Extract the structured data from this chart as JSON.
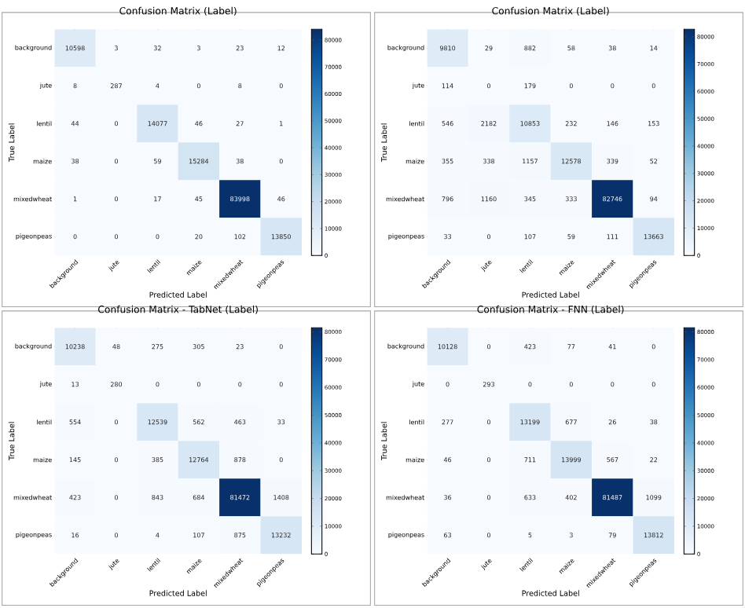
{
  "chart_data": [
    {
      "type": "heatmap",
      "title": "Confusion Matrix (Label)",
      "xlabel": "Predicted Label",
      "ylabel": "True Label",
      "categories": [
        "background",
        "jute",
        "lentil",
        "maize",
        "mixedwheat",
        "pigeonpeas"
      ],
      "y_categories": [
        "background",
        "jute",
        "lentil",
        "maize",
        "mixedwheat",
        "pigeonpeas"
      ],
      "cells": [
        [
          10598,
          3,
          32,
          3,
          23,
          12
        ],
        [
          8,
          287,
          4,
          0,
          8,
          0
        ],
        [
          44,
          0,
          14077,
          46,
          27,
          1
        ],
        [
          38,
          0,
          59,
          15284,
          38,
          0
        ],
        [
          1,
          0,
          17,
          45,
          83998,
          46
        ],
        [
          0,
          0,
          0,
          20,
          102,
          13850
        ]
      ],
      "clim": [
        0,
        83998
      ],
      "cticks": [
        0,
        10000,
        20000,
        30000,
        40000,
        50000,
        60000,
        70000,
        80000
      ],
      "data_labels": true
    },
    {
      "type": "heatmap",
      "title": "Confusion Matrix (Label)",
      "xlabel": "Predicted Label",
      "ylabel": "True Label",
      "categories": [
        "background",
        "jute",
        "lentil",
        "maize",
        "mixedwheat",
        "pigeonpeas"
      ],
      "y_categories": [
        "background",
        "jute",
        "lentil",
        "maize",
        "mixedwheat",
        "pigeonpeas"
      ],
      "cells": [
        [
          9810,
          29,
          882,
          58,
          38,
          14
        ],
        [
          114,
          0,
          179,
          0,
          0,
          0
        ],
        [
          546,
          2182,
          10853,
          232,
          146,
          153
        ],
        [
          355,
          338,
          1157,
          12578,
          339,
          52
        ],
        [
          796,
          1160,
          345,
          333,
          82746,
          94
        ],
        [
          33,
          0,
          107,
          59,
          111,
          13663
        ]
      ],
      "clim": [
        0,
        82746
      ],
      "cticks": [
        0,
        10000,
        20000,
        30000,
        40000,
        50000,
        60000,
        70000,
        80000
      ],
      "data_labels": true
    },
    {
      "type": "heatmap",
      "title": "Confusion Matrix - TabNet (Label)",
      "xlabel": "Predicted Label",
      "ylabel": "True Label",
      "categories": [
        "background",
        "jute",
        "lentil",
        "maize",
        "mixedwheat",
        "pigeonpeas"
      ],
      "y_categories": [
        "background",
        "jute",
        "lentil",
        "maize",
        "mixedwheat",
        "pigeonpeas"
      ],
      "cells": [
        [
          10238,
          48,
          275,
          305,
          23,
          0
        ],
        [
          13,
          280,
          0,
          0,
          0,
          0
        ],
        [
          554,
          0,
          12539,
          562,
          463,
          33
        ],
        [
          145,
          0,
          385,
          12764,
          878,
          0
        ],
        [
          423,
          0,
          843,
          684,
          81472,
          1408
        ],
        [
          16,
          0,
          4,
          107,
          875,
          13232
        ]
      ],
      "clim": [
        0,
        81472
      ],
      "cticks": [
        0,
        10000,
        20000,
        30000,
        40000,
        50000,
        60000,
        70000,
        80000
      ],
      "data_labels": true
    },
    {
      "type": "heatmap",
      "title": "Confusion Matrix - FNN (Label)",
      "xlabel": "Predicted Label",
      "ylabel": "True Label",
      "categories": [
        "background",
        "jute",
        "lentil",
        "maize",
        "mixedwheat",
        "pigeonpeas"
      ],
      "y_categories": [
        "background",
        "jute",
        "lentil",
        "maize",
        "mixedwheat",
        "pigeonpeas"
      ],
      "cells": [
        [
          10128,
          0,
          423,
          77,
          41,
          0
        ],
        [
          0,
          293,
          0,
          0,
          0,
          0
        ],
        [
          277,
          0,
          13199,
          677,
          26,
          38
        ],
        [
          46,
          0,
          711,
          13999,
          567,
          22
        ],
        [
          36,
          0,
          633,
          402,
          81487,
          1099
        ],
        [
          63,
          0,
          5,
          3,
          79,
          13812
        ]
      ],
      "clim": [
        0,
        81487
      ],
      "cticks": [
        0,
        10000,
        20000,
        30000,
        40000,
        50000,
        60000,
        70000,
        80000
      ],
      "data_labels": true
    }
  ]
}
